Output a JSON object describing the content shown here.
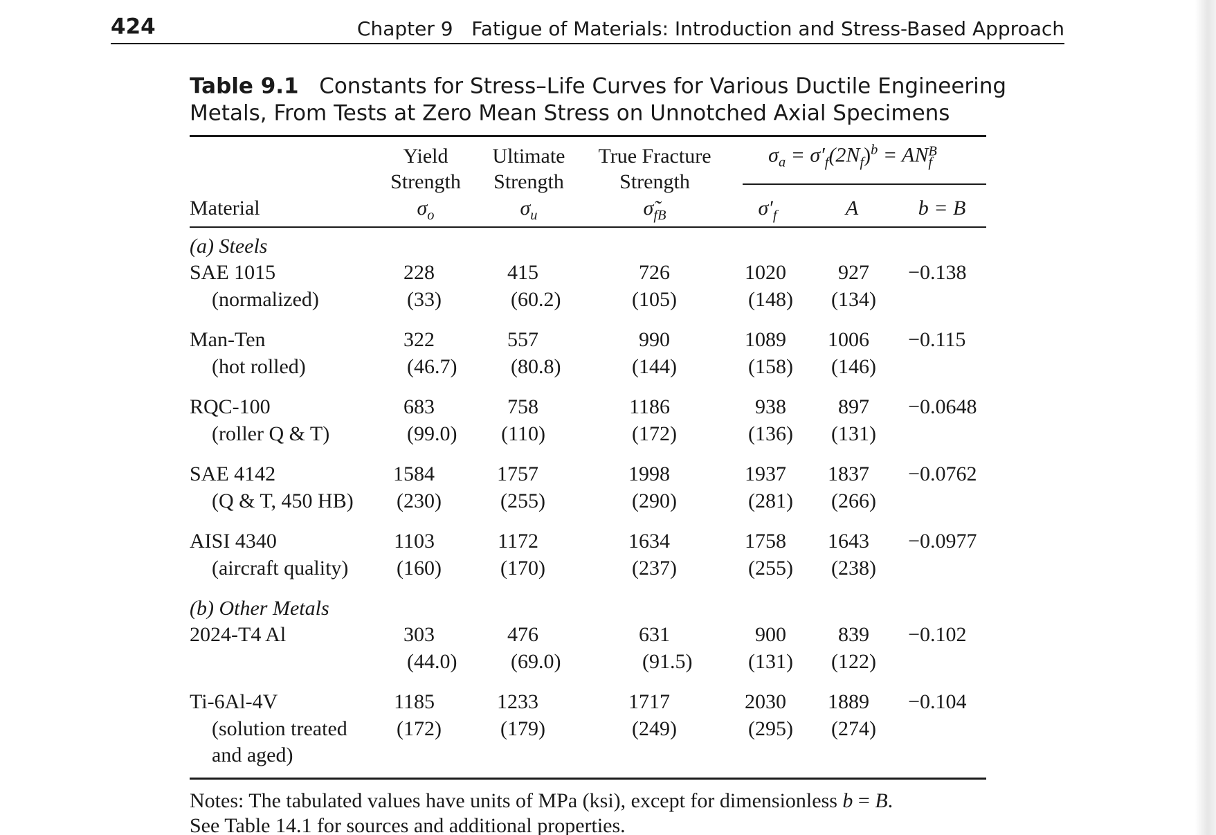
{
  "header": {
    "page_number": "424",
    "chapter": "Chapter 9",
    "chapter_title": "Fatigue of Materials: Introduction and Stress-Based Approach"
  },
  "caption": {
    "label": "Table 9.1",
    "title_lines": [
      "Constants for Stress–Life Curves for Various Ductile Engineering",
      "Metals, From Tests at Zero Mean Stress on Unnotched Axial Specimens"
    ]
  },
  "table": {
    "material_header": "Material",
    "formula": [
      "σ",
      "a",
      " = σ′",
      "f",
      "(2N",
      "f",
      ")",
      "b",
      " = AN",
      "f",
      "B"
    ],
    "columns": [
      {
        "label_lines": [
          "Yield",
          "Strength"
        ],
        "symbol": "σ",
        "sub": "o"
      },
      {
        "label_lines": [
          "Ultimate",
          "Strength"
        ],
        "symbol": "σ",
        "sub": "u"
      },
      {
        "label_lines": [
          "True Fracture",
          "Strength"
        ],
        "symbol": "σ̃",
        "sub": "fB"
      },
      {
        "label_lines": [],
        "symbol": "σ′",
        "sub": "f"
      },
      {
        "label_lines": [],
        "symbol": "A",
        "sub": ""
      },
      {
        "label_lines": [],
        "symbol": "b = B",
        "sub": ""
      }
    ],
    "sections": [
      {
        "title": "(a) Steels",
        "rows": [
          {
            "material": "SAE 1015",
            "condition": [
              "(normalized)"
            ],
            "values": [
              "228",
              "415",
              "726",
              "1020",
              "927",
              "−0.138"
            ],
            "ksi": [
              "(33)",
              "(60.2)",
              "(105)",
              "(148)",
              "(134)"
            ]
          },
          {
            "material": "Man-Ten",
            "condition": [
              "(hot rolled)"
            ],
            "values": [
              "322",
              "557",
              "990",
              "1089",
              "1006",
              "−0.115"
            ],
            "ksi": [
              "(46.7)",
              "(80.8)",
              "(144)",
              "(158)",
              "(146)"
            ]
          },
          {
            "material": "RQC-100",
            "condition": [
              "(roller Q & T)"
            ],
            "values": [
              "683",
              "758",
              "1186",
              "938",
              "897",
              "−0.0648"
            ],
            "ksi": [
              "(99.0)",
              "(110)",
              "(172)",
              "(136)",
              "(131)"
            ]
          },
          {
            "material": "SAE 4142",
            "condition": [
              "(Q & T, 450 HB)"
            ],
            "values": [
              "1584",
              "1757",
              "1998",
              "1937",
              "1837",
              "−0.0762"
            ],
            "ksi": [
              "(230)",
              "(255)",
              "(290)",
              "(281)",
              "(266)"
            ]
          },
          {
            "material": "AISI 4340",
            "condition": [
              "(aircraft quality)"
            ],
            "values": [
              "1103",
              "1172",
              "1634",
              "1758",
              "1643",
              "−0.0977"
            ],
            "ksi": [
              "(160)",
              "(170)",
              "(237)",
              "(255)",
              "(238)"
            ]
          }
        ]
      },
      {
        "title": "(b) Other Metals",
        "rows": [
          {
            "material": "2024-T4 Al",
            "condition": [],
            "values": [
              "303",
              "476",
              "631",
              "900",
              "839",
              "−0.102"
            ],
            "ksi": [
              "(44.0)",
              "(69.0)",
              "(91.5)",
              "(131)",
              "(122)"
            ]
          },
          {
            "material": "Ti-6Al-4V",
            "condition": [
              "(solution treated",
              "and aged)"
            ],
            "values": [
              "1185",
              "1233",
              "1717",
              "2030",
              "1889",
              "−0.104"
            ],
            "ksi": [
              "(172)",
              "(179)",
              "(249)",
              "(295)",
              "(274)"
            ]
          }
        ]
      }
    ]
  },
  "notes": [
    [
      "Notes: The tabulated values have units of MPa (ksi), except for dimensionless ",
      "b",
      " = ",
      "B",
      "."
    ],
    [
      "See Table 14.1 for sources and additional properties."
    ]
  ]
}
